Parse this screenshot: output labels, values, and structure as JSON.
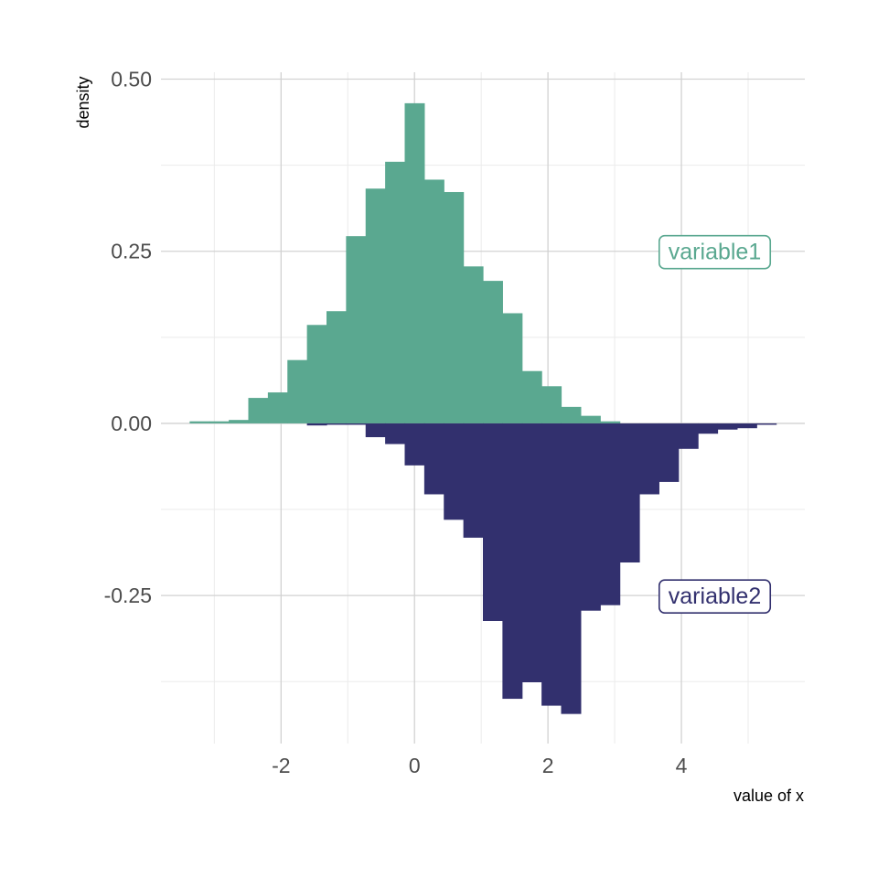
{
  "chart_data": {
    "type": "bar",
    "xlabel": "value of x",
    "ylabel": "density",
    "xlim": [
      -3.8,
      5.85
    ],
    "ylim": [
      -0.465,
      0.51
    ],
    "x_ticks": [
      -2,
      0,
      2,
      4
    ],
    "x_tick_labels": [
      "-2",
      "0",
      "2",
      "4"
    ],
    "y_ticks": [
      0.5,
      0.25,
      0.0,
      -0.25
    ],
    "y_tick_labels": [
      "0.50",
      "0.25",
      "0.00",
      "-0.25"
    ],
    "grid": true,
    "bin_width": 0.293,
    "series": [
      {
        "name": "variable1",
        "color": "#5aa890",
        "direction": "up",
        "bins": [
          {
            "x0": -3.37,
            "value": 0.003
          },
          {
            "x0": -3.077,
            "value": 0.003
          },
          {
            "x0": -2.784,
            "value": 0.005
          },
          {
            "x0": -2.491,
            "value": 0.037
          },
          {
            "x0": -2.198,
            "value": 0.045
          },
          {
            "x0": -1.905,
            "value": 0.092
          },
          {
            "x0": -1.612,
            "value": 0.143
          },
          {
            "x0": -1.319,
            "value": 0.163
          },
          {
            "x0": -1.026,
            "value": 0.272
          },
          {
            "x0": -0.733,
            "value": 0.341
          },
          {
            "x0": -0.44,
            "value": 0.38
          },
          {
            "x0": -0.147,
            "value": 0.465
          },
          {
            "x0": 0.146,
            "value": 0.354
          },
          {
            "x0": 0.439,
            "value": 0.336
          },
          {
            "x0": 0.732,
            "value": 0.228
          },
          {
            "x0": 1.025,
            "value": 0.207
          },
          {
            "x0": 1.318,
            "value": 0.16
          },
          {
            "x0": 1.611,
            "value": 0.076
          },
          {
            "x0": 1.904,
            "value": 0.054
          },
          {
            "x0": 2.197,
            "value": 0.024
          },
          {
            "x0": 2.49,
            "value": 0.011
          },
          {
            "x0": 2.783,
            "value": 0.003
          }
        ]
      },
      {
        "name": "variable2",
        "color": "#32306e",
        "direction": "down",
        "bins": [
          {
            "x0": -1.612,
            "value": 0.003
          },
          {
            "x0": -1.319,
            "value": 0.002
          },
          {
            "x0": -1.026,
            "value": 0.002
          },
          {
            "x0": -0.733,
            "value": 0.02
          },
          {
            "x0": -0.44,
            "value": 0.03
          },
          {
            "x0": -0.147,
            "value": 0.061
          },
          {
            "x0": 0.146,
            "value": 0.103
          },
          {
            "x0": 0.439,
            "value": 0.14
          },
          {
            "x0": 0.732,
            "value": 0.166
          },
          {
            "x0": 1.025,
            "value": 0.287
          },
          {
            "x0": 1.318,
            "value": 0.4
          },
          {
            "x0": 1.611,
            "value": 0.376
          },
          {
            "x0": 1.904,
            "value": 0.41
          },
          {
            "x0": 2.197,
            "value": 0.422
          },
          {
            "x0": 2.49,
            "value": 0.272
          },
          {
            "x0": 2.783,
            "value": 0.264
          },
          {
            "x0": 3.076,
            "value": 0.202
          },
          {
            "x0": 3.369,
            "value": 0.103
          },
          {
            "x0": 3.662,
            "value": 0.085
          },
          {
            "x0": 3.955,
            "value": 0.037
          },
          {
            "x0": 4.248,
            "value": 0.015
          },
          {
            "x0": 4.541,
            "value": 0.009
          },
          {
            "x0": 4.834,
            "value": 0.007
          },
          {
            "x0": 5.127,
            "value": 0.002
          }
        ]
      }
    ],
    "annotations": [
      {
        "text": "variable1",
        "series": "variable1",
        "x": 4.5,
        "y": 0.25,
        "color": "#5aa890"
      },
      {
        "text": "variable2",
        "series": "variable2",
        "x": 4.5,
        "y": -0.25,
        "color": "#32306e"
      }
    ]
  }
}
